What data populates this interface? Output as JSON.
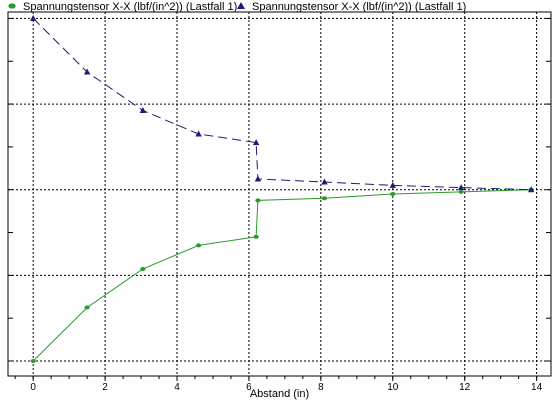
{
  "chart_data": {
    "type": "line",
    "xlabel": "Abstand (in)",
    "ylabel": "",
    "xlim": [
      -0.7,
      14.4
    ],
    "ylim": [
      -0.35,
      8.15
    ],
    "xticks": [
      0,
      2,
      4,
      6,
      8,
      10,
      12,
      14
    ],
    "xtick_labels": [
      "0",
      "2",
      "4",
      "6",
      "8",
      "10",
      "12",
      "14"
    ],
    "y_grid_lines": [
      0,
      2,
      4,
      6,
      8
    ],
    "y_minor_ticks": [
      0,
      1,
      2,
      3,
      4,
      5,
      6,
      7,
      8
    ],
    "grid": true,
    "legend_position": "top",
    "series": [
      {
        "name": "Spannungstensor X-X (lbf/(in^2)) (Lastfall 1)",
        "color": "#2a9a2a",
        "marker": "ellipse",
        "line_style": "solid",
        "x": [
          0,
          1.5,
          3.05,
          4.6,
          6.2,
          6.25,
          8.1,
          10.0,
          11.9,
          13.85
        ],
        "y": [
          0,
          1.25,
          2.15,
          2.7,
          2.9,
          3.75,
          3.8,
          3.9,
          3.95,
          4.0
        ]
      },
      {
        "name": "Spannungstensor X-X (lbf/(in^2)) (Lastfall 1)",
        "color": "#1c1c78",
        "marker": "triangle",
        "line_style": "dashed",
        "x": [
          0,
          1.5,
          3.05,
          4.6,
          6.2,
          6.25,
          8.1,
          10.0,
          11.9,
          13.85
        ],
        "y": [
          8.0,
          6.75,
          5.85,
          5.3,
          5.1,
          4.25,
          4.18,
          4.1,
          4.05,
          4.0
        ]
      }
    ]
  }
}
